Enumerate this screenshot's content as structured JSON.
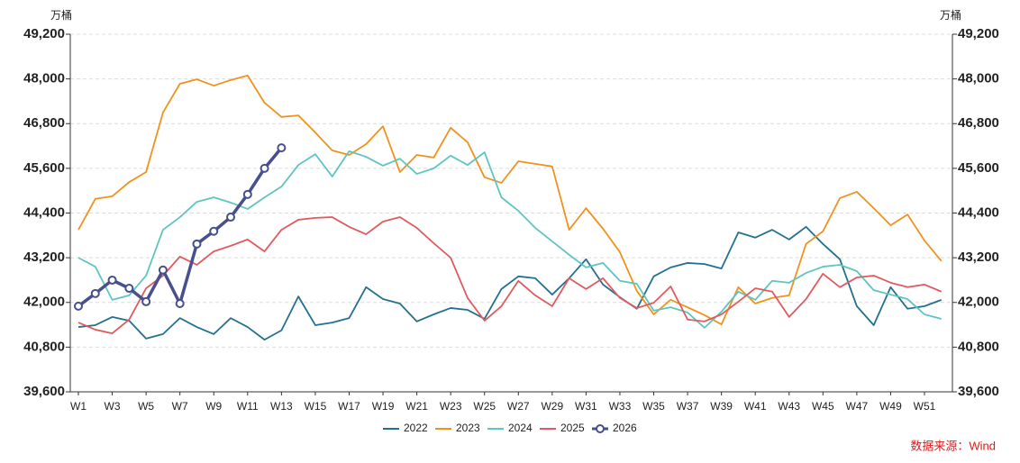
{
  "chart_data": {
    "type": "line",
    "ylabel": "万桶",
    "y2label": "万桶",
    "source": "数据来源：Wind",
    "categories": [
      "W1",
      null,
      "W3",
      null,
      "W5",
      null,
      "W7",
      null,
      "W9",
      null,
      "W11",
      null,
      "W13",
      null,
      "W15",
      null,
      "W17",
      null,
      "W19",
      null,
      "W21",
      null,
      "W23",
      null,
      "W25",
      null,
      "W27",
      null,
      "W29",
      null,
      "W31",
      null,
      "W33",
      null,
      "W35",
      null,
      "W37",
      null,
      "W39",
      null,
      "W41",
      null,
      "W43",
      null,
      "W45",
      null,
      "W47",
      null,
      "W49",
      null,
      "W51",
      null
    ],
    "ylim": [
      39600,
      49200
    ],
    "yticks": [
      {
        "value": 39600,
        "label": "39,600"
      },
      {
        "value": 40800,
        "label": "40,800"
      },
      {
        "value": 42000,
        "label": "42,000"
      },
      {
        "value": 43200,
        "label": "43,200"
      },
      {
        "value": 44400,
        "label": "44,400"
      },
      {
        "value": 45600,
        "label": "45,600"
      },
      {
        "value": 46800,
        "label": "46,800"
      },
      {
        "value": 48000,
        "label": "48,000"
      },
      {
        "value": 49200,
        "label": "49,200"
      }
    ],
    "y2lim": [
      39600,
      49200
    ],
    "y2ticks": [
      {
        "value": 39600,
        "label": "39,600"
      },
      {
        "value": 40800,
        "label": "40,800"
      },
      {
        "value": 42000,
        "label": "42,000"
      },
      {
        "value": 43200,
        "label": "43,200"
      },
      {
        "value": 44400,
        "label": "44,400"
      },
      {
        "value": 45600,
        "label": "45,600"
      },
      {
        "value": 46800,
        "label": "46,800"
      },
      {
        "value": 48000,
        "label": "48,000"
      },
      {
        "value": 49200,
        "label": "49,200"
      }
    ],
    "grid": true,
    "legend": "bottom",
    "series": [
      {
        "name": "2022",
        "color": "#23718f",
        "values": [
          41340,
          41390,
          41610,
          41510,
          41030,
          41150,
          41580,
          41340,
          41150,
          41580,
          41340,
          41000,
          41250,
          42160,
          41390,
          41460,
          41580,
          42410,
          42090,
          41970,
          41490,
          41680,
          41850,
          41800,
          41560,
          42360,
          42700,
          42650,
          42210,
          42650,
          43160,
          42480,
          42140,
          41830,
          42700,
          42940,
          43060,
          43030,
          42910,
          43880,
          43740,
          43950,
          43690,
          44030,
          43570,
          43160,
          41900,
          41390,
          42410,
          41830,
          41900,
          42070
        ]
      },
      {
        "name": "2023",
        "color": "#f0921e",
        "values": [
          43950,
          44780,
          44850,
          45230,
          45500,
          47100,
          47870,
          47990,
          47820,
          47970,
          48090,
          47360,
          46980,
          47020,
          46560,
          46080,
          45960,
          46250,
          46730,
          45500,
          45960,
          45890,
          46690,
          46300,
          45360,
          45210,
          45790,
          45720,
          45650,
          43950,
          44530,
          43980,
          43350,
          42310,
          41680,
          42070,
          41870,
          41660,
          41410,
          42410,
          41970,
          42120,
          42190,
          43570,
          43910,
          44800,
          44970,
          44530,
          44070,
          44360,
          43660,
          43110
        ]
      },
      {
        "name": "2024",
        "color": "#5ec5c0",
        "values": [
          43200,
          42960,
          42070,
          42190,
          42720,
          43950,
          44290,
          44700,
          44820,
          44680,
          44510,
          44820,
          45110,
          45690,
          45980,
          45380,
          46060,
          45910,
          45670,
          45860,
          45450,
          45600,
          45940,
          45690,
          46030,
          44820,
          44460,
          44000,
          43640,
          43280,
          42940,
          43060,
          42580,
          42500,
          41780,
          41870,
          41730,
          41320,
          41750,
          42290,
          42070,
          42580,
          42530,
          42790,
          42960,
          43010,
          42840,
          42330,
          42210,
          42090,
          41680,
          41560
        ]
      },
      {
        "name": "2025",
        "color": "#e05b60",
        "values": [
          41460,
          41270,
          41170,
          41540,
          42380,
          42720,
          43230,
          43010,
          43370,
          43520,
          43690,
          43370,
          43950,
          44220,
          44270,
          44290,
          44030,
          43830,
          44170,
          44290,
          44000,
          43590,
          43200,
          42120,
          41510,
          41900,
          42580,
          42190,
          41900,
          42650,
          42360,
          42650,
          42120,
          41850,
          41990,
          42430,
          41540,
          41490,
          41680,
          42020,
          42380,
          42290,
          41610,
          42090,
          42770,
          42410,
          42670,
          42720,
          42530,
          42410,
          42480,
          42290
        ]
      },
      {
        "name": "2026",
        "color": "#474f8c",
        "marker": "circle",
        "values": [
          41900,
          42240,
          42600,
          42380,
          42020,
          42870,
          41970,
          43570,
          43910,
          44290,
          44900,
          45600,
          46150,
          null,
          null,
          null,
          null,
          null,
          null,
          null,
          null,
          null,
          null,
          null,
          null,
          null,
          null,
          null,
          null,
          null,
          null,
          null,
          null,
          null,
          null,
          null,
          null,
          null,
          null,
          null,
          null,
          null,
          null,
          null,
          null,
          null,
          null,
          null,
          null,
          null,
          null,
          null
        ]
      }
    ]
  }
}
